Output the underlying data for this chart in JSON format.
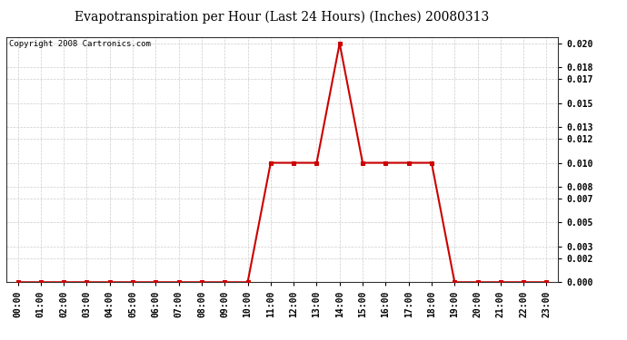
{
  "title": "Evapotranspiration per Hour (Last 24 Hours) (Inches) 20080313",
  "copyright": "Copyright 2008 Cartronics.com",
  "hours": [
    "00:00",
    "01:00",
    "02:00",
    "03:00",
    "04:00",
    "05:00",
    "06:00",
    "07:00",
    "08:00",
    "09:00",
    "10:00",
    "11:00",
    "12:00",
    "13:00",
    "14:00",
    "15:00",
    "16:00",
    "17:00",
    "18:00",
    "19:00",
    "20:00",
    "21:00",
    "22:00",
    "23:00"
  ],
  "values": [
    0.0,
    0.0,
    0.0,
    0.0,
    0.0,
    0.0,
    0.0,
    0.0,
    0.0,
    0.0,
    0.0,
    0.01,
    0.01,
    0.01,
    0.02,
    0.01,
    0.01,
    0.01,
    0.01,
    0.0,
    0.0,
    0.0,
    0.0,
    0.0
  ],
  "line_color": "#cc0000",
  "marker": "s",
  "marker_color": "#cc0000",
  "marker_size": 3,
  "ylim": [
    0.0,
    0.0205
  ],
  "yticks": [
    0.0,
    0.002,
    0.003,
    0.005,
    0.007,
    0.008,
    0.01,
    0.012,
    0.013,
    0.015,
    0.017,
    0.018,
    0.02
  ],
  "grid_color": "#cccccc",
  "bg_color": "#ffffff",
  "title_fontsize": 10,
  "tick_fontsize": 7,
  "copyright_fontsize": 6.5
}
